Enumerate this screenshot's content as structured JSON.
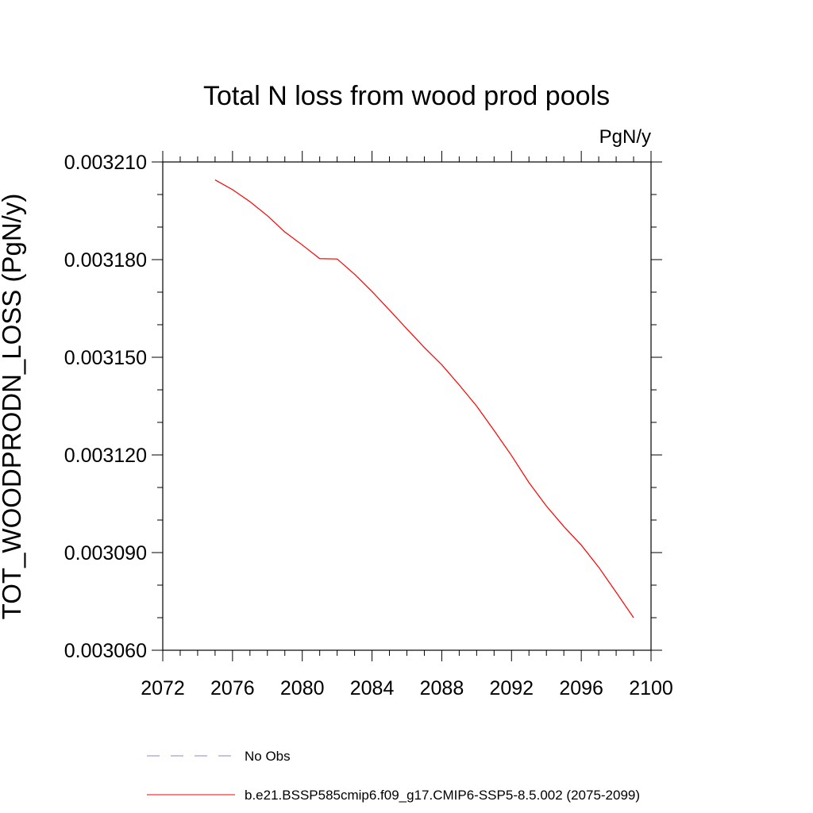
{
  "chart_data": {
    "type": "line",
    "title": "Total N loss from wood prod pools",
    "units_label": "PgN/y",
    "ylabel": "TOT_WOODPRODN_LOSS  (PgN/y)",
    "xlabel": "",
    "xlim": [
      2072,
      2100
    ],
    "ylim": [
      0.00306,
      0.00321
    ],
    "x_ticks": [
      "2072",
      "2076",
      "2080",
      "2084",
      "2088",
      "2092",
      "2096",
      "2100"
    ],
    "y_ticks": [
      "0.003060",
      "0.003090",
      "0.003120",
      "0.003150",
      "0.003180",
      "0.003210"
    ],
    "grid": false,
    "legend_position": "bottom",
    "series": [
      {
        "name": "No Obs",
        "color": "#8888cc",
        "style": "dashed",
        "x": [],
        "y": []
      },
      {
        "name": "b.e21.BSSP585cmip6.f09_g17.CMIP6-SSP5-8.5.002 (2075-2099)",
        "color": "#ff0000",
        "style": "solid",
        "x": [
          2075,
          2076,
          2077,
          2078,
          2079,
          2080,
          2081,
          2082,
          2083,
          2084,
          2085,
          2086,
          2087,
          2088,
          2089,
          2090,
          2091,
          2092,
          2093,
          2094,
          2095,
          2096,
          2097,
          2098,
          2099
        ],
        "y": [
          0.0032045,
          0.0032015,
          0.0031978,
          0.0031935,
          0.0031885,
          0.0031845,
          0.0031803,
          0.0031802,
          0.0031755,
          0.0031702,
          0.0031645,
          0.0031587,
          0.003153,
          0.0031477,
          0.0031415,
          0.003135,
          0.0031275,
          0.0031198,
          0.0031115,
          0.0031043,
          0.003098,
          0.0030923,
          0.0030855,
          0.0030778,
          0.00307
        ]
      }
    ]
  }
}
